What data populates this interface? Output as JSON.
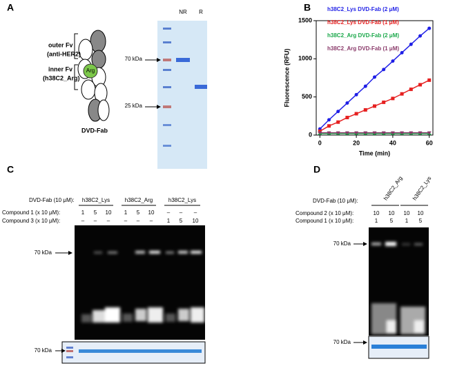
{
  "panels": {
    "a": {
      "label": "A",
      "outer_fv": "outer Fv",
      "outer_target": "(anti-HER2)",
      "inner_fv": "inner Fv",
      "inner_target": "(h38C2_Arg)",
      "residue": "Arg",
      "construct": "DVD-Fab",
      "lanes": [
        "NR",
        "R"
      ],
      "markers": [
        "70 kDa",
        "25 kDa"
      ]
    },
    "b": {
      "label": "B"
    },
    "c": {
      "label": "C",
      "row_label": "DVD-Fab  (10 μM):",
      "groups": [
        "h38C2_Lys",
        "h38C2_Arg",
        "h38C2_Lys"
      ],
      "compound_rows": [
        {
          "label": "Compound  1  (x 10 μM):",
          "values": [
            "1",
            "5",
            "10",
            "1",
            "5",
            "10",
            "–",
            "–",
            "–"
          ]
        },
        {
          "label": "Compound  3  (x 10 μM):",
          "values": [
            "–",
            "–",
            "–",
            "–",
            "–",
            "–",
            "1",
            "5",
            "10"
          ]
        }
      ],
      "markers": [
        "70 kDa",
        "70 kDa"
      ]
    },
    "d": {
      "label": "D",
      "row_label": "DVD-Fab  (10 μM):",
      "groups": [
        "h38C2_Arg",
        "h38C2_Lys"
      ],
      "compound_rows": [
        {
          "label": "Compound  2  (x 10 μM):",
          "values": [
            "10",
            "10",
            "10",
            "10"
          ]
        },
        {
          "label": "Compound  1  (x 10 μM):",
          "values": [
            "1",
            "5",
            "1",
            "5"
          ]
        }
      ],
      "markers": [
        "70 kDa",
        "70 kDa"
      ]
    }
  },
  "chart_data": {
    "type": "line",
    "x": [
      0,
      5,
      10,
      15,
      20,
      25,
      30,
      35,
      40,
      45,
      50,
      55,
      60
    ],
    "series": [
      {
        "name": "h38C2_Lys DVD-Fab  (2 μM)",
        "color": "#1f1fe6",
        "marker": "circle",
        "values": [
          80,
          200,
          310,
          420,
          530,
          640,
          760,
          860,
          970,
          1080,
          1190,
          1300,
          1400
        ]
      },
      {
        "name": "h38C2_Lys DVD-Fab  (1 μM)",
        "color": "#e62020",
        "marker": "square",
        "values": [
          50,
          120,
          170,
          230,
          280,
          330,
          380,
          430,
          480,
          540,
          600,
          660,
          720
        ]
      },
      {
        "name": "h38C2_Arg DVD-Fab  (2 μM)",
        "color": "#1aa84a",
        "marker": "triangle-up",
        "values": [
          20,
          20,
          20,
          20,
          20,
          20,
          20,
          20,
          20,
          20,
          20,
          20,
          20
        ]
      },
      {
        "name": "h38C2_Arg DVD-Fab  (1 μM)",
        "color": "#8a3a6a",
        "marker": "triangle-down",
        "values": [
          30,
          30,
          30,
          30,
          30,
          30,
          30,
          30,
          30,
          30,
          30,
          30,
          30
        ]
      }
    ],
    "xlabel": "Time (min)",
    "ylabel": "Fluorescence (RFU)",
    "xlim": [
      -2,
      62
    ],
    "xticks": [
      0,
      20,
      40,
      60
    ],
    "ylim": [
      0,
      1500
    ],
    "yticks": [
      0,
      500,
      1000,
      1500
    ]
  }
}
